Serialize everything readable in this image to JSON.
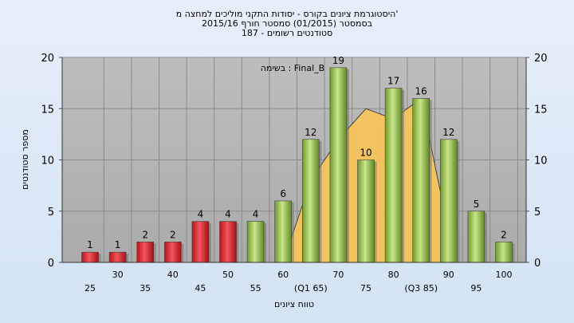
{
  "chart_data": {
    "type": "bar",
    "title_lines": [
      "היסטוגרמת ציונים בקורס - יסודות התקני מוליכים למחצה מ'",
      "בסמסטר  (01/2015)  סמסטר חורף 2015/16",
      "סטודנטים רשומים - 187"
    ],
    "xlabel": "טווח ציונים",
    "ylabel": "מספר סטודנטים",
    "ylim": [
      0,
      20
    ],
    "yticks": [
      0,
      5,
      10,
      15,
      20
    ],
    "annotation": "בשימה : Final_B",
    "categories": [
      "25",
      "30",
      "35",
      "40",
      "45",
      "50",
      "55",
      "60",
      "65",
      "70",
      "75",
      "80",
      "85",
      "90",
      "95",
      "100"
    ],
    "category_labels": [
      "25",
      "30",
      "35",
      "40",
      "45",
      "50",
      "55",
      "60",
      "(Q1 65)",
      "70",
      "75",
      "80",
      "(Q3 85)",
      "90",
      "95",
      "100"
    ],
    "values": [
      1,
      1,
      2,
      2,
      4,
      4,
      4,
      6,
      12,
      19,
      10,
      17,
      16,
      12,
      5,
      2
    ],
    "bar_colors": [
      "red",
      "red",
      "red",
      "red",
      "red",
      "red",
      "green",
      "green",
      "green",
      "green",
      "green",
      "green",
      "green",
      "green",
      "green",
      "green"
    ],
    "distribution_curve": {
      "x": [
        "60",
        "65",
        "70",
        "75",
        "80",
        "85",
        "90"
      ],
      "values": [
        0,
        8,
        12,
        15,
        14,
        16,
        3
      ]
    },
    "grid": true
  }
}
